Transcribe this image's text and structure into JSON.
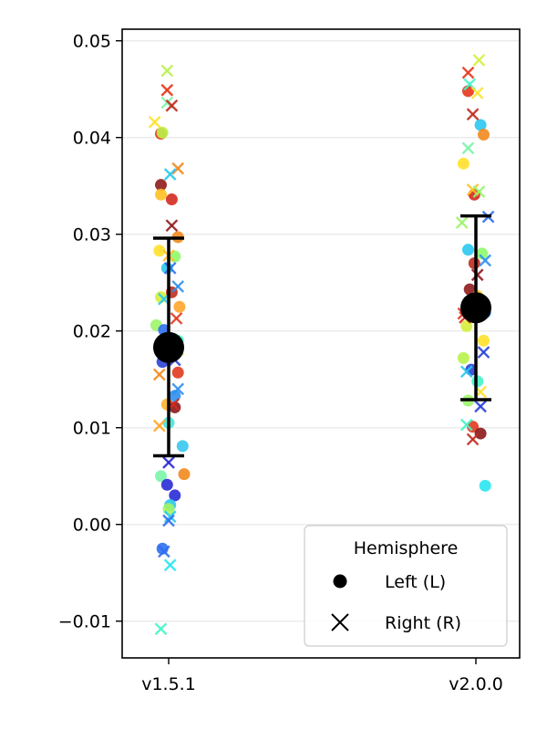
{
  "chart_data": {
    "type": "scatter",
    "title": "",
    "xlabel": "",
    "ylabel": "",
    "categories": [
      "v1.5.1",
      "v2.0.0"
    ],
    "ylim": [
      -0.0138,
      0.0512
    ],
    "yticks": [
      -0.01,
      0.0,
      0.01,
      0.02,
      0.03,
      0.04,
      0.05
    ],
    "ytick_labels": [
      "−0.01",
      "0.00",
      "0.01",
      "0.02",
      "0.03",
      "0.04",
      "0.05"
    ],
    "grid": "horizontal",
    "summary": [
      {
        "category": "v1.5.1",
        "mean": 0.0183,
        "lower": 0.0071,
        "upper": 0.0296
      },
      {
        "category": "v2.0.0",
        "mean": 0.0224,
        "lower": 0.0129,
        "upper": 0.0319
      }
    ],
    "series": [
      {
        "name": "Left (L)",
        "marker": "circle",
        "points": [
          {
            "category": "v1.5.1",
            "offset": -0.05,
            "y": 0.0404,
            "color": "#e8351a"
          },
          {
            "category": "v1.5.1",
            "offset": -0.04,
            "y": 0.0405,
            "color": "#b9f24a"
          },
          {
            "category": "v1.5.1",
            "offset": -0.05,
            "y": 0.0351,
            "color": "#8f1c1c"
          },
          {
            "category": "v1.5.1",
            "offset": -0.05,
            "y": 0.0341,
            "color": "#ffc021"
          },
          {
            "category": "v1.5.1",
            "offset": 0.02,
            "y": 0.0336,
            "color": "#d42a1e"
          },
          {
            "category": "v1.5.1",
            "offset": 0.06,
            "y": 0.0297,
            "color": "#f28a1e"
          },
          {
            "category": "v1.5.1",
            "offset": -0.06,
            "y": 0.0283,
            "color": "#ffe12b"
          },
          {
            "category": "v1.5.1",
            "offset": 0.04,
            "y": 0.0277,
            "color": "#8efa6a"
          },
          {
            "category": "v1.5.1",
            "offset": -0.01,
            "y": 0.0265,
            "color": "#2ac8f0"
          },
          {
            "category": "v1.5.1",
            "offset": -0.05,
            "y": 0.0235,
            "color": "#d6f03a"
          },
          {
            "category": "v1.5.1",
            "offset": 0.02,
            "y": 0.024,
            "color": "#c12b1e"
          },
          {
            "category": "v1.5.1",
            "offset": 0.07,
            "y": 0.0225,
            "color": "#ffa62a"
          },
          {
            "category": "v1.5.1",
            "offset": -0.08,
            "y": 0.0206,
            "color": "#9cf56a"
          },
          {
            "category": "v1.5.1",
            "offset": -0.03,
            "y": 0.0201,
            "color": "#2f6ff0"
          },
          {
            "category": "v1.5.1",
            "offset": 0.06,
            "y": 0.019,
            "color": "#42f5c8"
          },
          {
            "category": "v1.5.1",
            "offset": -0.04,
            "y": 0.0168,
            "color": "#2a43d6"
          },
          {
            "category": "v1.5.1",
            "offset": 0.06,
            "y": 0.0157,
            "color": "#e03a1f"
          },
          {
            "category": "v1.5.1",
            "offset": 0.04,
            "y": 0.0133,
            "color": "#2f8ff0"
          },
          {
            "category": "v1.5.1",
            "offset": -0.01,
            "y": 0.0124,
            "color": "#ffb12a"
          },
          {
            "category": "v1.5.1",
            "offset": 0.04,
            "y": 0.0121,
            "color": "#8a1a1a"
          },
          {
            "category": "v1.5.1",
            "offset": 0.0,
            "y": 0.0105,
            "color": "#45e6d6"
          },
          {
            "category": "v1.5.1",
            "offset": 0.09,
            "y": 0.0081,
            "color": "#39c6f0"
          },
          {
            "category": "v1.5.1",
            "offset": 0.1,
            "y": 0.0052,
            "color": "#f28a1e"
          },
          {
            "category": "v1.5.1",
            "offset": -0.05,
            "y": 0.005,
            "color": "#7af5a8"
          },
          {
            "category": "v1.5.1",
            "offset": -0.01,
            "y": 0.0041,
            "color": "#2a2ad6"
          },
          {
            "category": "v1.5.1",
            "offset": 0.04,
            "y": 0.003,
            "color": "#2a2ad6"
          },
          {
            "category": "v1.5.1",
            "offset": 0.01,
            "y": 0.002,
            "color": "#2ac8f0"
          },
          {
            "category": "v1.5.1",
            "offset": 0.0,
            "y": 0.0016,
            "color": "#a3f560"
          },
          {
            "category": "v1.5.1",
            "offset": -0.04,
            "y": -0.0025,
            "color": "#2f6ff0"
          },
          {
            "category": "v2.0.0",
            "offset": -0.05,
            "y": 0.0448,
            "color": "#e8351a"
          },
          {
            "category": "v2.0.0",
            "offset": 0.03,
            "y": 0.0413,
            "color": "#2ac8f0"
          },
          {
            "category": "v2.0.0",
            "offset": 0.05,
            "y": 0.0403,
            "color": "#f28a1e"
          },
          {
            "category": "v2.0.0",
            "offset": -0.08,
            "y": 0.0373,
            "color": "#ffe12b"
          },
          {
            "category": "v2.0.0",
            "offset": -0.01,
            "y": 0.0341,
            "color": "#d42a1e"
          },
          {
            "category": "v2.0.0",
            "offset": -0.05,
            "y": 0.0284,
            "color": "#2ac8f0"
          },
          {
            "category": "v2.0.0",
            "offset": 0.04,
            "y": 0.028,
            "color": "#8efa6a"
          },
          {
            "category": "v2.0.0",
            "offset": -0.01,
            "y": 0.027,
            "color": "#c12b1e"
          },
          {
            "category": "v2.0.0",
            "offset": -0.04,
            "y": 0.0243,
            "color": "#8f1c1c"
          },
          {
            "category": "v2.0.0",
            "offset": 0.01,
            "y": 0.0236,
            "color": "#ffc021"
          },
          {
            "category": "v2.0.0",
            "offset": 0.06,
            "y": 0.0219,
            "color": "#2f8ff0"
          },
          {
            "category": "v2.0.0",
            "offset": -0.06,
            "y": 0.0205,
            "color": "#d6f03a"
          },
          {
            "category": "v2.0.0",
            "offset": 0.05,
            "y": 0.019,
            "color": "#ffe12b"
          },
          {
            "category": "v2.0.0",
            "offset": -0.08,
            "y": 0.0172,
            "color": "#b9f24a"
          },
          {
            "category": "v2.0.0",
            "offset": -0.03,
            "y": 0.016,
            "color": "#2a43d6"
          },
          {
            "category": "v2.0.0",
            "offset": 0.01,
            "y": 0.0148,
            "color": "#42f5c8"
          },
          {
            "category": "v2.0.0",
            "offset": -0.05,
            "y": 0.0128,
            "color": "#9cf56a"
          },
          {
            "category": "v2.0.0",
            "offset": -0.02,
            "y": 0.0101,
            "color": "#e03a1f"
          },
          {
            "category": "v2.0.0",
            "offset": 0.03,
            "y": 0.0094,
            "color": "#8a1a1a"
          },
          {
            "category": "v2.0.0",
            "offset": 0.06,
            "y": 0.004,
            "color": "#2ae6f0"
          }
        ]
      },
      {
        "name": "Right (R)",
        "marker": "x",
        "points": [
          {
            "category": "v1.5.1",
            "offset": -0.01,
            "y": 0.0469,
            "color": "#b9f24a"
          },
          {
            "category": "v1.5.1",
            "offset": -0.01,
            "y": 0.0449,
            "color": "#e8351a"
          },
          {
            "category": "v1.5.1",
            "offset": -0.01,
            "y": 0.0436,
            "color": "#7af5a8"
          },
          {
            "category": "v1.5.1",
            "offset": 0.02,
            "y": 0.0433,
            "color": "#c12b1e"
          },
          {
            "category": "v1.5.1",
            "offset": -0.09,
            "y": 0.0416,
            "color": "#ffe12b"
          },
          {
            "category": "v1.5.1",
            "offset": 0.06,
            "y": 0.0368,
            "color": "#f28a1e"
          },
          {
            "category": "v1.5.1",
            "offset": 0.01,
            "y": 0.0362,
            "color": "#2ac8f0"
          },
          {
            "category": "v1.5.1",
            "offset": 0.02,
            "y": 0.0309,
            "color": "#8f1c1c"
          },
          {
            "category": "v1.5.1",
            "offset": 0.0,
            "y": 0.0278,
            "color": "#ffc021"
          },
          {
            "category": "v1.5.1",
            "offset": 0.01,
            "y": 0.0265,
            "color": "#2f6ff0"
          },
          {
            "category": "v1.5.1",
            "offset": 0.06,
            "y": 0.0246,
            "color": "#2f8ff0"
          },
          {
            "category": "v1.5.1",
            "offset": -0.03,
            "y": 0.0233,
            "color": "#2ac8f0"
          },
          {
            "category": "v1.5.1",
            "offset": 0.05,
            "y": 0.0213,
            "color": "#e03a1f"
          },
          {
            "category": "v1.5.1",
            "offset": 0.06,
            "y": 0.0181,
            "color": "#d6f03a"
          },
          {
            "category": "v1.5.1",
            "offset": 0.04,
            "y": 0.017,
            "color": "#2a43d6"
          },
          {
            "category": "v1.5.1",
            "offset": -0.06,
            "y": 0.0155,
            "color": "#f28a1e"
          },
          {
            "category": "v1.5.1",
            "offset": 0.06,
            "y": 0.014,
            "color": "#2f8ff0"
          },
          {
            "category": "v1.5.1",
            "offset": 0.03,
            "y": 0.0124,
            "color": "#d42a1e"
          },
          {
            "category": "v1.5.1",
            "offset": -0.06,
            "y": 0.0102,
            "color": "#ffa62a"
          },
          {
            "category": "v1.5.1",
            "offset": 0.0,
            "y": 0.0064,
            "color": "#2a2ad6"
          },
          {
            "category": "v1.5.1",
            "offset": 0.01,
            "y": 0.0008,
            "color": "#2ac8f0"
          },
          {
            "category": "v1.5.1",
            "offset": 0.0,
            "y": 0.0004,
            "color": "#2f6ff0"
          },
          {
            "category": "v1.5.1",
            "offset": -0.03,
            "y": -0.0028,
            "color": "#2f6ff0"
          },
          {
            "category": "v1.5.1",
            "offset": 0.01,
            "y": -0.0042,
            "color": "#2ae6f0"
          },
          {
            "category": "v1.5.1",
            "offset": -0.05,
            "y": -0.0108,
            "color": "#42f5c8"
          },
          {
            "category": "v2.0.0",
            "offset": 0.02,
            "y": 0.048,
            "color": "#d6f03a"
          },
          {
            "category": "v2.0.0",
            "offset": -0.05,
            "y": 0.0467,
            "color": "#e8351a"
          },
          {
            "category": "v2.0.0",
            "offset": -0.04,
            "y": 0.0455,
            "color": "#42f5c8"
          },
          {
            "category": "v2.0.0",
            "offset": 0.01,
            "y": 0.0446,
            "color": "#ffe12b"
          },
          {
            "category": "v2.0.0",
            "offset": -0.02,
            "y": 0.0424,
            "color": "#c12b1e"
          },
          {
            "category": "v2.0.0",
            "offset": -0.05,
            "y": 0.0389,
            "color": "#7af5a8"
          },
          {
            "category": "v2.0.0",
            "offset": -0.02,
            "y": 0.0346,
            "color": "#ffc021"
          },
          {
            "category": "v2.0.0",
            "offset": 0.02,
            "y": 0.0344,
            "color": "#8efa6a"
          },
          {
            "category": "v2.0.0",
            "offset": 0.08,
            "y": 0.0318,
            "color": "#2f6ff0"
          },
          {
            "category": "v2.0.0",
            "offset": -0.09,
            "y": 0.0312,
            "color": "#9cf56a"
          },
          {
            "category": "v2.0.0",
            "offset": 0.06,
            "y": 0.0273,
            "color": "#2f8ff0"
          },
          {
            "category": "v2.0.0",
            "offset": 0.01,
            "y": 0.0258,
            "color": "#8f1c1c"
          },
          {
            "category": "v2.0.0",
            "offset": -0.08,
            "y": 0.0218,
            "color": "#e03a1f"
          },
          {
            "category": "v2.0.0",
            "offset": -0.07,
            "y": 0.0214,
            "color": "#d42a1e"
          },
          {
            "category": "v2.0.0",
            "offset": 0.05,
            "y": 0.0178,
            "color": "#2a43d6"
          },
          {
            "category": "v2.0.0",
            "offset": -0.06,
            "y": 0.0158,
            "color": "#2ac8f0"
          },
          {
            "category": "v2.0.0",
            "offset": 0.03,
            "y": 0.0137,
            "color": "#ffe12b"
          },
          {
            "category": "v2.0.0",
            "offset": 0.03,
            "y": 0.0122,
            "color": "#2a43d6"
          },
          {
            "category": "v2.0.0",
            "offset": -0.06,
            "y": 0.0103,
            "color": "#42f5c8"
          },
          {
            "category": "v2.0.0",
            "offset": -0.02,
            "y": 0.0088,
            "color": "#c12b1e"
          }
        ]
      }
    ],
    "legend": {
      "title": "Hemisphere",
      "entries": [
        "Left (L)",
        "Right (R)"
      ],
      "placement": "lower-right"
    }
  }
}
